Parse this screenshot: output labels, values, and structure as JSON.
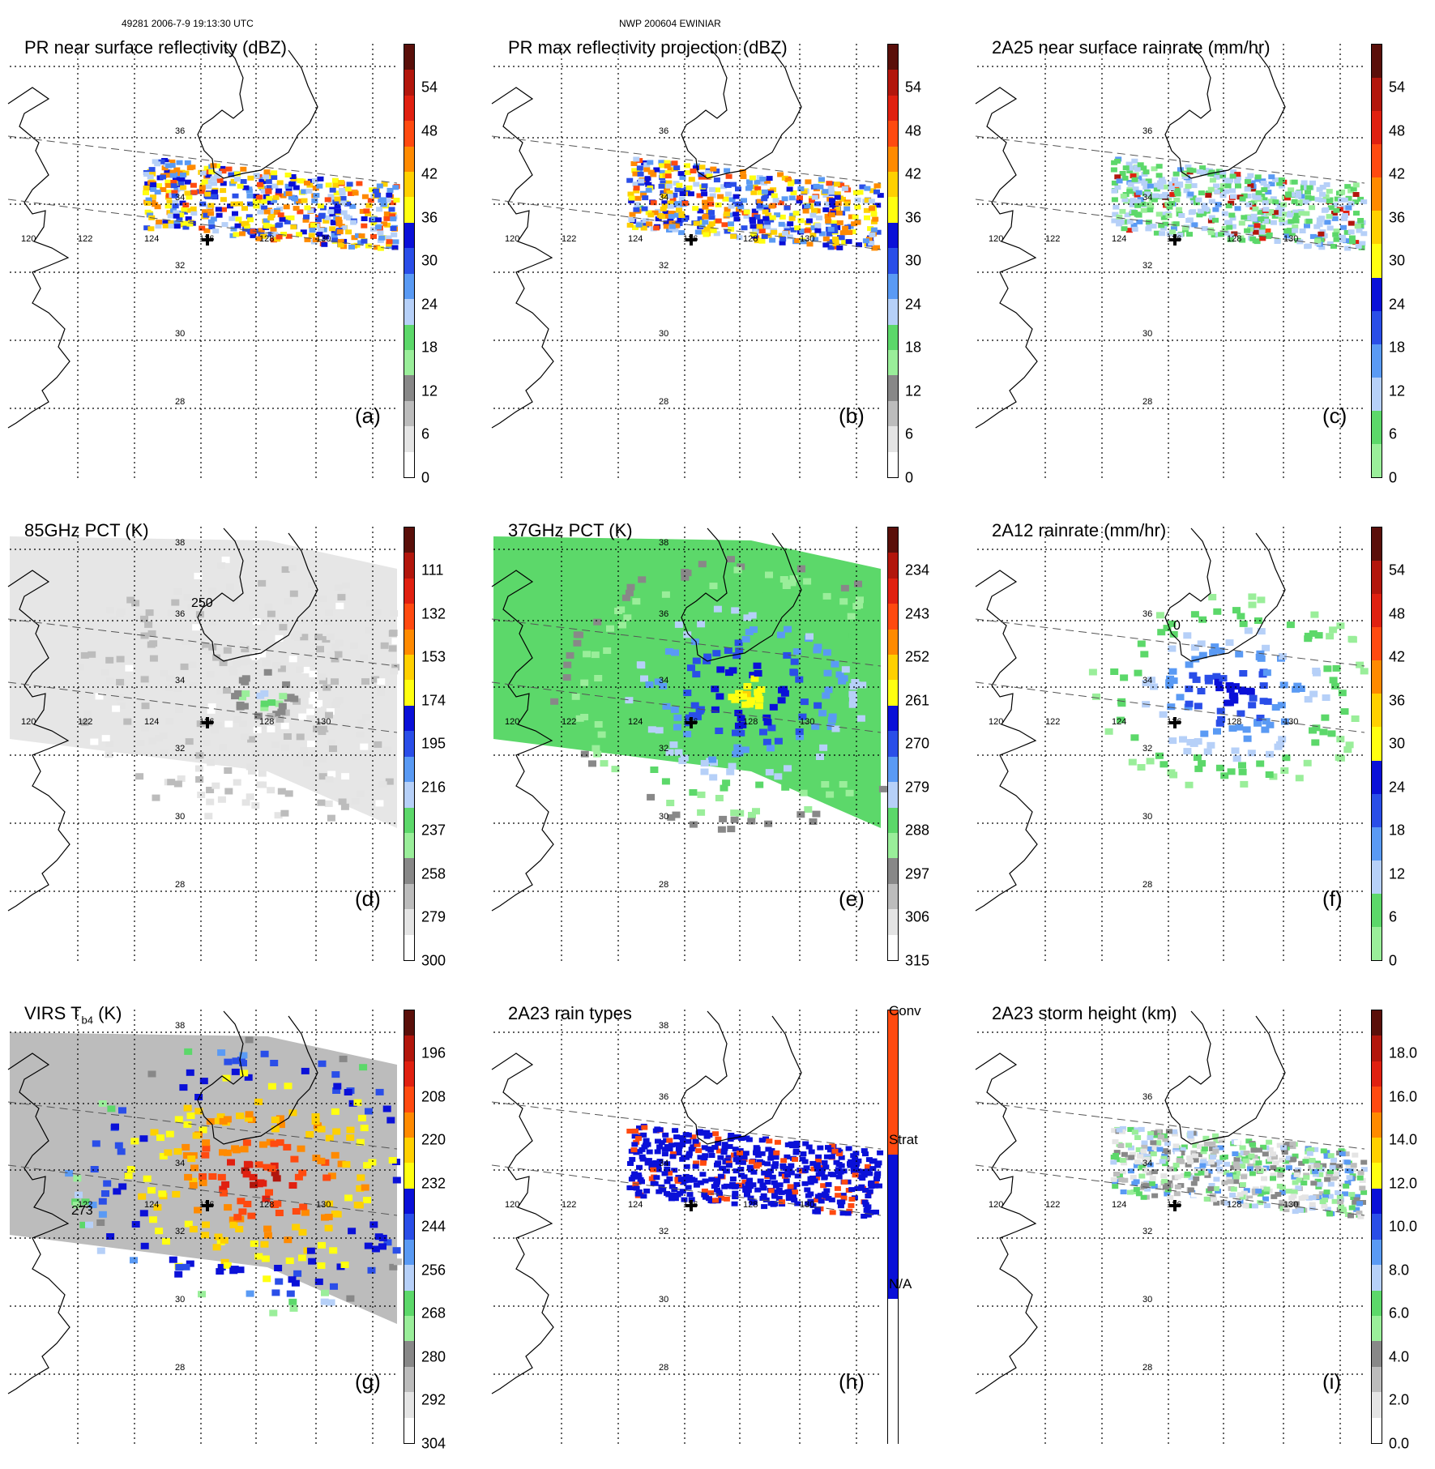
{
  "header": {
    "left": "49281 2006-7-9 19:13:30 UTC",
    "center": "NWP 200604 EWINIAR"
  },
  "chart_data": [
    {
      "id": "a",
      "type": "heatmap",
      "title": "PR near surface reflectivity (dBZ)",
      "label": "(a)",
      "colorbar_ticks": [
        "54",
        "48",
        "42",
        "36",
        "30",
        "24",
        "18",
        "12",
        "6",
        "0"
      ],
      "colorbar_colors": [
        "#5a0f0a",
        "#b2160c",
        "#e02010",
        "#ff4a10",
        "#ff8a00",
        "#ffd000",
        "#ffff10",
        "#0a10d8",
        "#2a4ee8",
        "#5a9af4",
        "#b6d0f8",
        "#5cd86a",
        "#9aee9a",
        "#888888",
        "#bcbcbc",
        "#e4e4e4",
        "#ffffff"
      ],
      "colorbar_yellow_idx": 6,
      "swath": "pr",
      "field": "refl",
      "lat_labels": [
        "36",
        "34",
        "32",
        "30",
        "28"
      ],
      "lon_labels": [
        "120",
        "122",
        "124",
        "126",
        "128",
        "130"
      ]
    },
    {
      "id": "b",
      "type": "heatmap",
      "title": "PR max reflectivity projection (dBZ)",
      "label": "(b)",
      "colorbar_ticks": [
        "54",
        "48",
        "42",
        "36",
        "30",
        "24",
        "18",
        "12",
        "6",
        "0"
      ],
      "colorbar_colors": [
        "#5a0f0a",
        "#b2160c",
        "#e02010",
        "#ff4a10",
        "#ff8a00",
        "#ffd000",
        "#ffff10",
        "#0a10d8",
        "#2a4ee8",
        "#5a9af4",
        "#b6d0f8",
        "#5cd86a",
        "#9aee9a",
        "#888888",
        "#bcbcbc",
        "#e4e4e4",
        "#ffffff"
      ],
      "swath": "pr",
      "field": "maxrefl",
      "lat_labels": [
        "36",
        "34",
        "32",
        "30",
        "28"
      ],
      "lon_labels": [
        "120",
        "122",
        "124",
        "126",
        "128",
        "130"
      ]
    },
    {
      "id": "c",
      "type": "heatmap",
      "title": "2A25 near surface rainrate (mm/hr)",
      "label": "(c)",
      "colorbar_ticks": [
        "54",
        "48",
        "42",
        "36",
        "30",
        "24",
        "18",
        "12",
        "6",
        "0"
      ],
      "colorbar_colors": [
        "#5a0f0a",
        "#b2160c",
        "#e02010",
        "#ff4a10",
        "#ff8a00",
        "#ffd000",
        "#ffff10",
        "#0a10d8",
        "#2a4ee8",
        "#5a9af4",
        "#b6d0f8",
        "#5cd86a",
        "#9aee9a"
      ],
      "swath": "pr",
      "field": "rain",
      "lat_labels": [
        "36",
        "34",
        "32",
        "30",
        "28"
      ],
      "lon_labels": [
        "120",
        "122",
        "124",
        "126",
        "128",
        "130"
      ]
    },
    {
      "id": "d",
      "type": "heatmap",
      "title": "85GHz PCT (K)",
      "label": "(d)",
      "colorbar_ticks": [
        "111",
        "132",
        "153",
        "174",
        "195",
        "216",
        "237",
        "258",
        "279",
        "300"
      ],
      "colorbar_colors": [
        "#5a0f0a",
        "#b2160c",
        "#e02010",
        "#ff4a10",
        "#ff8a00",
        "#ffd000",
        "#ffff10",
        "#0a10d8",
        "#2a4ee8",
        "#5a9af4",
        "#b6d0f8",
        "#5cd86a",
        "#9aee9a",
        "#888888",
        "#bcbcbc",
        "#e4e4e4",
        "#ffffff"
      ],
      "swath": "tmi",
      "field": "pct85",
      "contour_label": "250",
      "lat_labels": [
        "38",
        "36",
        "34",
        "32",
        "30",
        "28"
      ],
      "lon_labels": [
        "120",
        "122",
        "124",
        "126",
        "128",
        "130"
      ]
    },
    {
      "id": "e",
      "type": "heatmap",
      "title": "37GHz PCT (K)",
      "label": "(e)",
      "colorbar_ticks": [
        "234",
        "243",
        "252",
        "261",
        "270",
        "279",
        "288",
        "297",
        "306",
        "315"
      ],
      "colorbar_colors": [
        "#5a0f0a",
        "#b2160c",
        "#e02010",
        "#ff4a10",
        "#ff8a00",
        "#ffd000",
        "#ffff10",
        "#0a10d8",
        "#2a4ee8",
        "#5a9af4",
        "#b6d0f8",
        "#5cd86a",
        "#9aee9a",
        "#888888",
        "#bcbcbc",
        "#e4e4e4",
        "#ffffff"
      ],
      "swath": "tmi",
      "field": "pct37",
      "lat_labels": [
        "38",
        "36",
        "34",
        "32",
        "30",
        "28"
      ],
      "lon_labels": [
        "120",
        "122",
        "124",
        "126",
        "128",
        "130"
      ]
    },
    {
      "id": "f",
      "type": "heatmap",
      "title": "2A12 rainrate (mm/hr)",
      "label": "(f)",
      "colorbar_ticks": [
        "54",
        "48",
        "42",
        "36",
        "30",
        "24",
        "18",
        "12",
        "6",
        "0"
      ],
      "colorbar_colors": [
        "#5a0f0a",
        "#b2160c",
        "#e02010",
        "#ff4a10",
        "#ff8a00",
        "#ffd000",
        "#ffff10",
        "#0a10d8",
        "#2a4ee8",
        "#5a9af4",
        "#b6d0f8",
        "#5cd86a",
        "#9aee9a"
      ],
      "swath": "tmi",
      "field": "rain12",
      "contour_label": "0",
      "lat_labels": [
        "36",
        "34",
        "32",
        "30",
        "28"
      ],
      "lon_labels": [
        "120",
        "122",
        "124",
        "126",
        "128",
        "130"
      ]
    },
    {
      "id": "g",
      "type": "heatmap",
      "title": "VIRS T",
      "title_sub": "b4",
      "title_suffix": " (K)",
      "label": "(g)",
      "colorbar_ticks": [
        "196",
        "208",
        "220",
        "232",
        "244",
        "256",
        "268",
        "280",
        "292",
        "304"
      ],
      "colorbar_colors": [
        "#5a0f0a",
        "#b2160c",
        "#e02010",
        "#ff4a10",
        "#ff8a00",
        "#ffd000",
        "#ffff10",
        "#0a10d8",
        "#2a4ee8",
        "#5a9af4",
        "#b6d0f8",
        "#5cd86a",
        "#9aee9a",
        "#888888",
        "#bcbcbc",
        "#e4e4e4",
        "#ffffff"
      ],
      "swath": "virs",
      "field": "tb4",
      "contour_label": "273",
      "lat_labels": [
        "38",
        "34",
        "32",
        "30",
        "28"
      ],
      "lon_labels": [
        "122",
        "124",
        "126",
        "128",
        "130"
      ]
    },
    {
      "id": "h",
      "type": "heatmap",
      "title": "2A23 rain types",
      "label": "(h)",
      "colorbar_ticks": [
        "Conv",
        "Strat",
        "N/A"
      ],
      "colorbar_colors": [
        "#ff4a10",
        "#0a10d8",
        "#ffffff"
      ],
      "swath": "pr",
      "field": "type",
      "lat_labels": [
        "38",
        "36",
        "34",
        "32",
        "30",
        "28"
      ],
      "lon_labels": [
        "120",
        "122",
        "124",
        "126",
        "128",
        "130"
      ]
    },
    {
      "id": "i",
      "type": "heatmap",
      "title": "2A23 storm height (km)",
      "label": "(i)",
      "colorbar_ticks": [
        "18.0",
        "16.0",
        "14.0",
        "12.0",
        "10.0",
        "8.0",
        "6.0",
        "4.0",
        "2.0",
        "0.0"
      ],
      "colorbar_colors": [
        "#5a0f0a",
        "#b2160c",
        "#e02010",
        "#ff4a10",
        "#ff8a00",
        "#ffd000",
        "#ffff10",
        "#0a10d8",
        "#2a4ee8",
        "#5a9af4",
        "#b6d0f8",
        "#5cd86a",
        "#9aee9a",
        "#888888",
        "#bcbcbc",
        "#e4e4e4",
        "#ffffff"
      ],
      "swath": "pr",
      "field": "height",
      "lat_labels": [
        "36",
        "34",
        "32",
        "30",
        "28"
      ],
      "lon_labels": [
        "120",
        "122",
        "124",
        "126",
        "128",
        "130"
      ]
    }
  ]
}
